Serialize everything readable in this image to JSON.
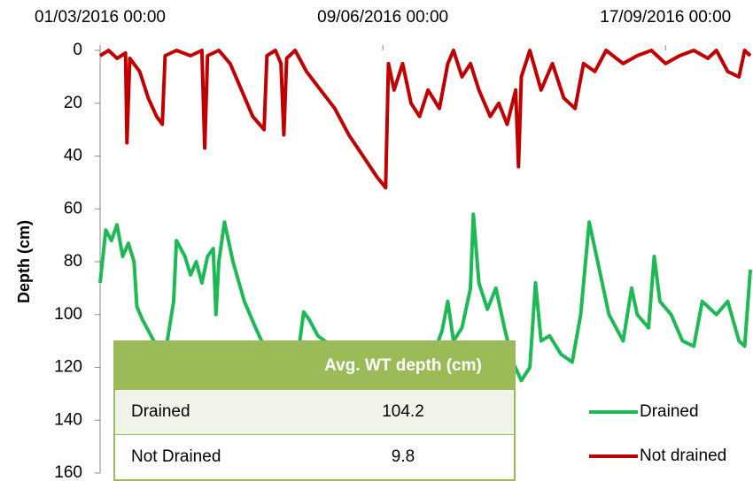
{
  "chart_data": {
    "type": "line",
    "y_label": "Depth (cm)",
    "xlim": [
      0,
      230
    ],
    "xticks": [
      {
        "value": 0,
        "label": "01/03/2016 00:00"
      },
      {
        "value": 100,
        "label": "09/06/2016 00:00"
      },
      {
        "value": 200,
        "label": "17/09/2016 00:00"
      }
    ],
    "ylim": [
      0,
      160
    ],
    "y_inverted": true,
    "yticks": [
      0,
      20,
      40,
      60,
      80,
      100,
      120,
      140,
      160
    ],
    "legend": "lower right",
    "series": [
      {
        "name": "Drained",
        "color": "#1db954",
        "x": [
          0,
          2,
          4,
          6,
          8,
          10,
          12,
          13,
          15,
          19,
          23,
          26,
          27,
          30,
          32,
          34,
          36,
          38,
          40,
          41,
          42,
          44,
          47,
          51,
          55,
          58,
          62,
          66,
          70,
          72,
          74,
          77,
          82,
          90,
          100,
          110,
          118,
          121,
          123,
          125,
          128,
          131,
          132,
          134,
          137,
          140,
          143,
          146,
          149,
          152,
          154,
          156,
          159,
          163,
          167,
          170,
          173,
          176,
          180,
          185,
          188,
          190,
          194,
          196,
          198,
          202,
          206,
          210,
          213,
          218,
          222,
          226,
          228,
          230
        ],
        "values": [
          88,
          68,
          72,
          66,
          78,
          73,
          80,
          97,
          102,
          110,
          115,
          95,
          72,
          78,
          85,
          80,
          88,
          78,
          75,
          100,
          80,
          65,
          80,
          95,
          105,
          112,
          120,
          118,
          115,
          99,
          102,
          108,
          112,
          118,
          120,
          118,
          115,
          106,
          95,
          110,
          105,
          90,
          62,
          88,
          98,
          90,
          105,
          118,
          125,
          120,
          88,
          110,
          108,
          115,
          118,
          100,
          65,
          80,
          100,
          110,
          90,
          100,
          105,
          78,
          95,
          100,
          110,
          112,
          95,
          100,
          95,
          110,
          112,
          83
        ]
      },
      {
        "name": "Not drained",
        "color": "#c00000",
        "x": [
          0,
          3,
          6,
          9,
          9.5,
          10.5,
          14,
          17,
          20,
          22,
          23,
          27,
          32,
          36,
          37,
          38,
          42,
          46,
          50,
          54,
          58,
          59,
          62,
          64,
          65,
          66,
          69,
          73,
          78,
          83,
          88,
          93,
          98,
          101,
          102,
          104,
          107,
          110,
          113,
          116,
          120,
          123,
          125,
          128,
          131,
          134,
          138,
          141,
          144,
          147,
          148,
          149,
          152,
          156,
          160,
          164,
          168,
          171,
          175,
          179,
          185,
          190,
          195,
          200,
          205,
          210,
          215,
          218,
          222,
          226,
          228,
          230
        ],
        "values": [
          2,
          0,
          3,
          1,
          35,
          3,
          8,
          18,
          25,
          28,
          2,
          0,
          2,
          0,
          37,
          2,
          0,
          5,
          15,
          25,
          30,
          2,
          0,
          5,
          32,
          3,
          0,
          8,
          15,
          22,
          32,
          40,
          48,
          52,
          5,
          15,
          5,
          20,
          25,
          15,
          22,
          5,
          0,
          10,
          5,
          15,
          25,
          20,
          28,
          15,
          44,
          10,
          0,
          15,
          5,
          18,
          22,
          5,
          8,
          0,
          5,
          2,
          0,
          5,
          2,
          0,
          3,
          0,
          8,
          10,
          0,
          2
        ]
      }
    ]
  },
  "table": {
    "header": "Avg. WT depth (cm)",
    "rows": [
      [
        "Drained",
        104.2
      ],
      [
        "Not Drained",
        9.8
      ]
    ]
  }
}
